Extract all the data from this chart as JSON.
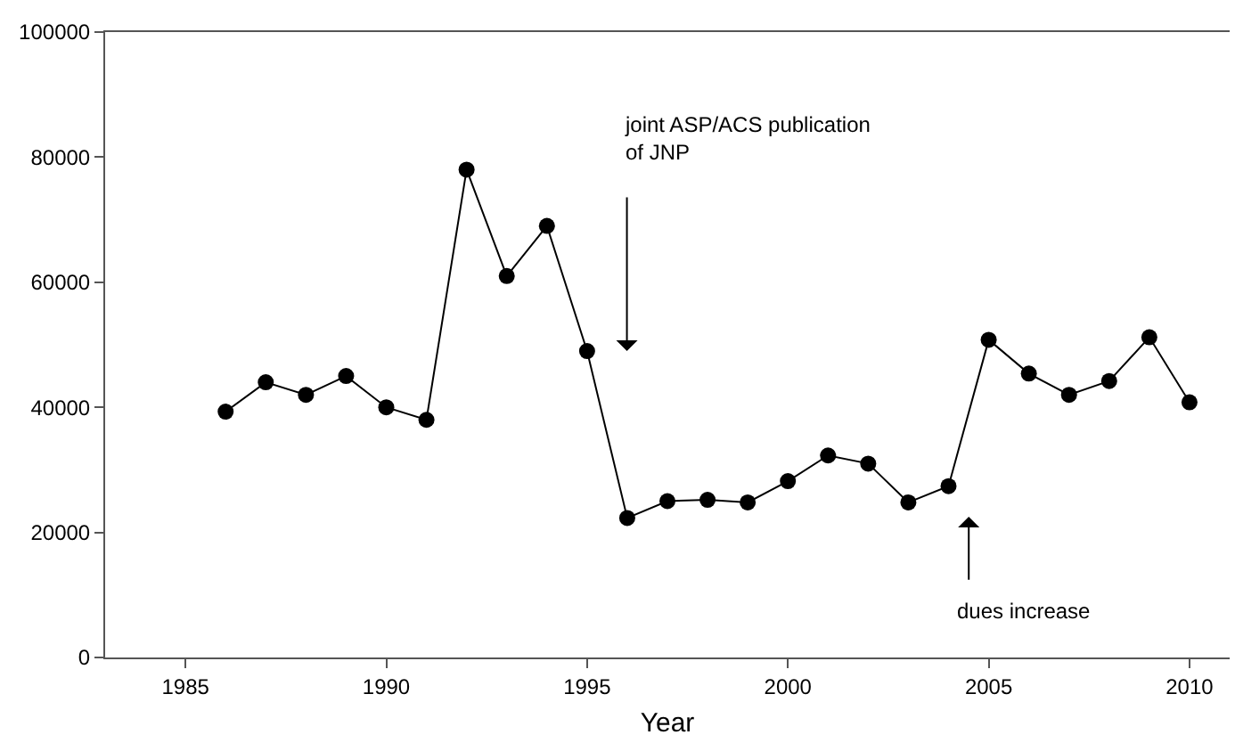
{
  "chart_data": {
    "type": "line",
    "xlabel": "Year",
    "x": [
      1986,
      1987,
      1988,
      1989,
      1990,
      1991,
      1992,
      1993,
      1994,
      1995,
      1996,
      1997,
      1998,
      1999,
      2000,
      2001,
      2002,
      2003,
      2004,
      2005,
      2006,
      2007,
      2008,
      2009,
      2010
    ],
    "series": [
      {
        "color": "#000000",
        "values": [
          39300,
          44000,
          42000,
          45000,
          40000,
          38000,
          78000,
          61000,
          69000,
          49000,
          22300,
          25000,
          25200,
          24800,
          28200,
          32300,
          31000,
          24800,
          27400,
          50800,
          45400,
          42000,
          44200,
          51200,
          40800
        ]
      }
    ],
    "xlim": [
      1983,
      2011
    ],
    "xticks": [
      1985,
      1990,
      1995,
      2000,
      2005,
      2010
    ],
    "ylim": [
      0,
      100000
    ],
    "yticks": [
      0,
      20000,
      40000,
      60000,
      80000,
      100000
    ],
    "annotations": [
      "joint ASP/ACS publication\nof JNP",
      "dues increase"
    ],
    "marker": "circle",
    "line_style": "solid"
  }
}
